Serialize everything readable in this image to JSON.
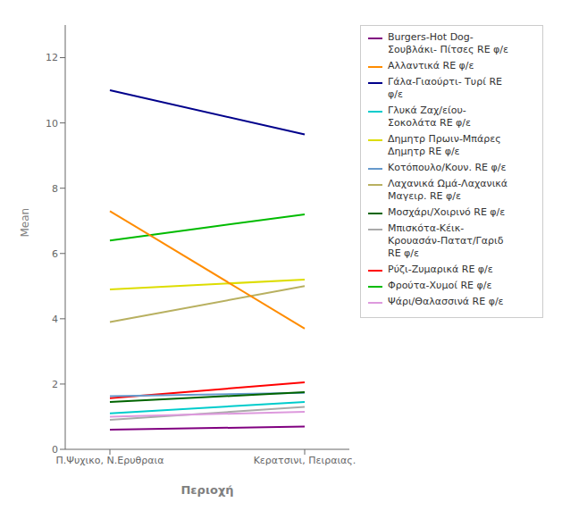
{
  "chart_data": {
    "type": "line",
    "xlabel": "Περιοχή",
    "ylabel": "Mean",
    "categories": [
      "Π.Ψυχικο, Ν.Ερυθραια",
      "Κερατσινι, Πειραιας."
    ],
    "ylim": [
      0,
      13
    ],
    "yticks": [
      0,
      2,
      4,
      6,
      8,
      10,
      12
    ],
    "grid": false,
    "legend": "right",
    "series": [
      {
        "name": "Γάλα-Γιαούρτι- Τυρί RE\nφ/ε",
        "color": "#00008B",
        "values": [
          11.0,
          9.65
        ]
      },
      {
        "name": "Φρούτα-Χυμοί RE φ/ε",
        "color": "#00BB00",
        "values": [
          6.4,
          7.2
        ]
      },
      {
        "name": "Λαχανικά Ωμά-Λαχανικά\nΜαγειρ. RE φ/ε",
        "color": "#B8B060",
        "values": [
          3.9,
          5.0
        ]
      },
      {
        "name": "Burgers-Hot Dog-\nΣουβλάκι- Πίτσες RE φ/ε",
        "color": "#800080",
        "values": [
          0.6,
          0.7
        ]
      },
      {
        "name": "Δημητρ Πρωιν-Μπάρες\nΔημητρ RE φ/ε",
        "color": "#DDDD00",
        "values": [
          4.9,
          5.2
        ]
      },
      {
        "name": "Ρύζι-Ζυμαρικά RE φ/ε",
        "color": "#FF0000",
        "values": [
          1.57,
          2.05
        ]
      },
      {
        "name": "Γλυκά Ζαχ/είου-\nΣοκολάτα RE φ/ε",
        "color": "#00CCCC",
        "values": [
          1.1,
          1.45
        ]
      },
      {
        "name": "Μπισκότα-Κέικ-\nΚρουασάν-Πατατ/Γαριδ\nRE φ/ε",
        "color": "#AAAAAA",
        "values": [
          0.9,
          1.3
        ]
      },
      {
        "name": "Κοτόπουλο/Κουν. RE φ/ε",
        "color": "#6699CC",
        "values": [
          1.63,
          1.73
        ]
      },
      {
        "name": "Μοσχάρι/Χοιρινό RE φ/ε",
        "color": "#006400",
        "values": [
          1.45,
          1.75
        ]
      },
      {
        "name": "Αλλαντικά RE φ/ε",
        "color": "#FF8C00",
        "values": [
          7.3,
          3.7
        ]
      },
      {
        "name": "Ψάρι/Θαλασσινά RE φ/ε",
        "color": "#DD99DD",
        "values": [
          1.0,
          1.15
        ]
      }
    ]
  }
}
